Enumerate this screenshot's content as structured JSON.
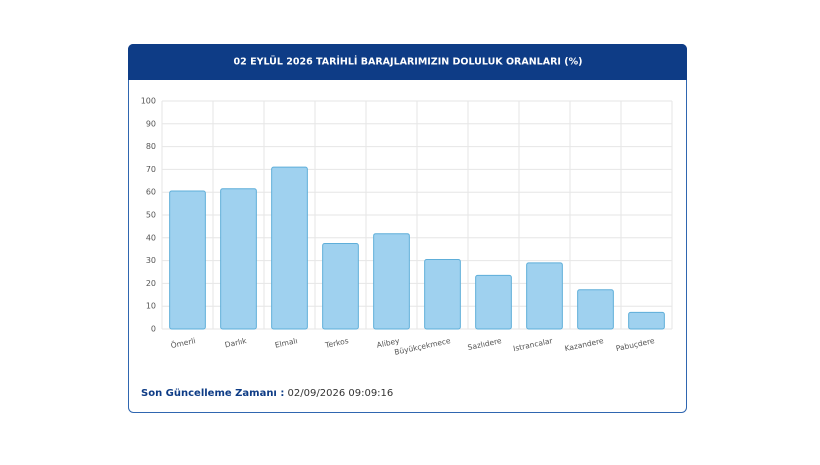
{
  "chart_data": {
    "type": "bar",
    "title": "02 EYLÜL 2026 TARİHLİ BARAJLARIMIZIN DOLULUK ORANLARI (%)",
    "categories": [
      "Ömerli",
      "Darlık",
      "Elmalı",
      "Terkos",
      "Alibey",
      "Büyükçekmece",
      "Sazlıdere",
      "Istrancalar",
      "Kazandere",
      "Pabuçdere"
    ],
    "values": [
      60.5,
      61.5,
      71,
      37.5,
      41.8,
      30.5,
      23.5,
      29,
      17.2,
      7.3
    ],
    "color": "#9fd1ef",
    "ylim": [
      0,
      100
    ],
    "yticks": [
      0,
      10,
      20,
      30,
      40,
      50,
      60,
      70,
      80,
      90,
      100
    ],
    "grid": true,
    "footer_label": "Son Güncelleme Zamanı :",
    "footer_value": "02/09/2026 09:09:16"
  }
}
